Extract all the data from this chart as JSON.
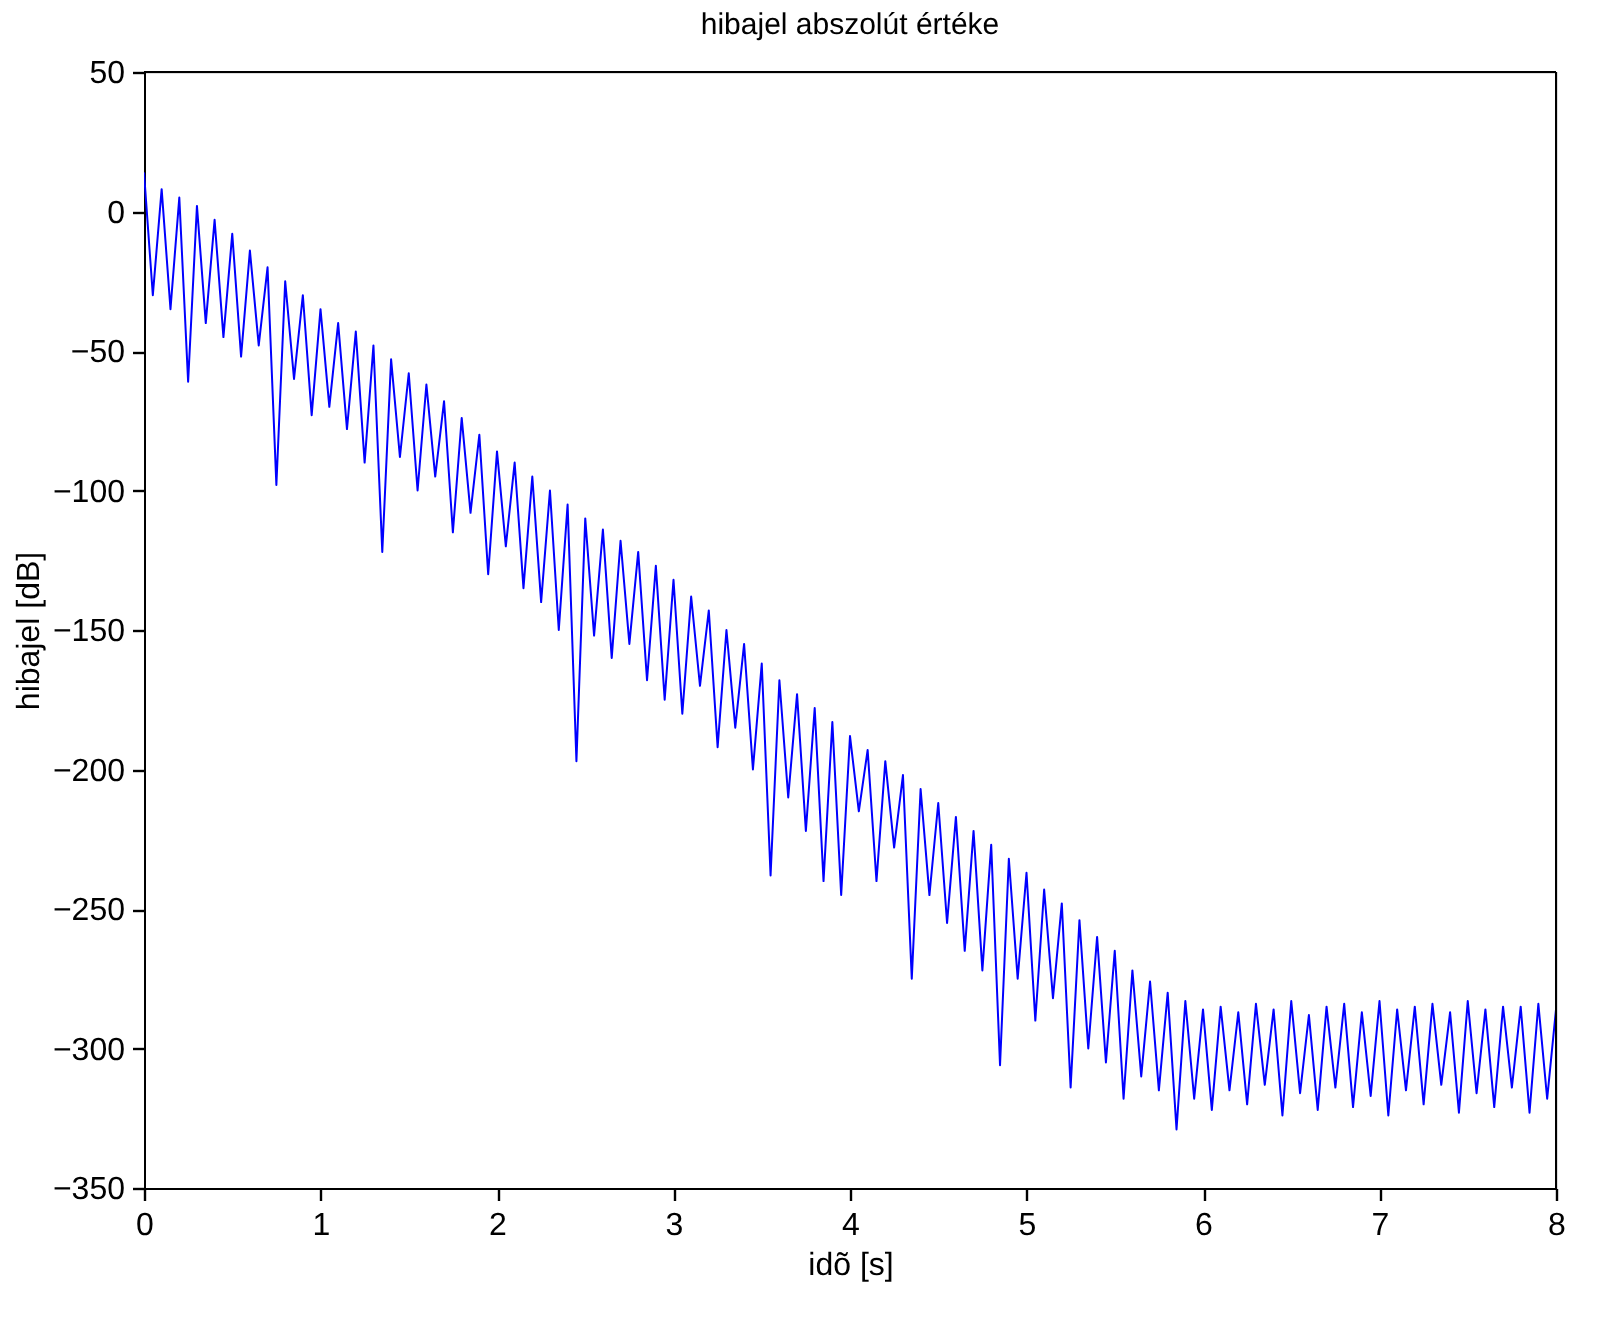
{
  "chart_data": {
    "type": "line",
    "title": "hibajel abszolút értéke",
    "xlabel": "idõ [s]",
    "ylabel": "hibajel [dB]",
    "xlim": [
      0,
      8
    ],
    "xticks": [
      0,
      1,
      2,
      3,
      4,
      5,
      6,
      7,
      8
    ],
    "ylim": [
      -350,
      50
    ],
    "yticks": [
      -350,
      -300,
      -250,
      -200,
      -150,
      -100,
      -50,
      0,
      50
    ],
    "grid": false,
    "legend": false,
    "marker": "none",
    "line_style": "solid",
    "series": [
      {
        "color": "#0000ff",
        "x": [
          0.0,
          0.05,
          0.1,
          0.15,
          0.2,
          0.25,
          0.3,
          0.35,
          0.4,
          0.45,
          0.5,
          0.55,
          0.6,
          0.65,
          0.7,
          0.75,
          0.8,
          0.85,
          0.9,
          0.95,
          1.0,
          1.05,
          1.1,
          1.15,
          1.2,
          1.25,
          1.3,
          1.35,
          1.4,
          1.45,
          1.5,
          1.55,
          1.6,
          1.65,
          1.7,
          1.75,
          1.8,
          1.85,
          1.9,
          1.95,
          2.0,
          2.05,
          2.1,
          2.15,
          2.2,
          2.25,
          2.3,
          2.35,
          2.4,
          2.45,
          2.5,
          2.55,
          2.6,
          2.65,
          2.7,
          2.75,
          2.8,
          2.85,
          2.9,
          2.95,
          3.0,
          3.05,
          3.1,
          3.15,
          3.2,
          3.25,
          3.3,
          3.35,
          3.4,
          3.45,
          3.5,
          3.55,
          3.6,
          3.65,
          3.7,
          3.75,
          3.8,
          3.85,
          3.9,
          3.95,
          4.0,
          4.05,
          4.1,
          4.15,
          4.2,
          4.25,
          4.3,
          4.35,
          4.4,
          4.45,
          4.5,
          4.55,
          4.6,
          4.65,
          4.7,
          4.75,
          4.8,
          4.85,
          4.9,
          4.95,
          5.0,
          5.05,
          5.1,
          5.15,
          5.2,
          5.25,
          5.3,
          5.35,
          5.4,
          5.45,
          5.5,
          5.55,
          5.6,
          5.65,
          5.7,
          5.75,
          5.8,
          5.85,
          5.9,
          5.95,
          6.0,
          6.05,
          6.1,
          6.15,
          6.2,
          6.25,
          6.3,
          6.35,
          6.4,
          6.45,
          6.5,
          6.55,
          6.6,
          6.65,
          6.7,
          6.75,
          6.8,
          6.85,
          6.9,
          6.95,
          7.0,
          7.05,
          7.1,
          7.15,
          7.2,
          7.25,
          7.3,
          7.35,
          7.4,
          7.45,
          7.5,
          7.55,
          7.6,
          7.65,
          7.7,
          7.75,
          7.8,
          7.85,
          7.9,
          7.95,
          8.0
        ],
        "values": [
          14,
          -30,
          8,
          -35,
          5,
          -61,
          2,
          -40,
          -3,
          -45,
          -8,
          -52,
          -14,
          -48,
          -20,
          -98,
          -25,
          -60,
          -30,
          -73,
          -35,
          -70,
          -40,
          -78,
          -43,
          -90,
          -48,
          -122,
          -53,
          -88,
          -58,
          -100,
          -62,
          -95,
          -68,
          -115,
          -74,
          -108,
          -80,
          -130,
          -86,
          -120,
          -90,
          -135,
          -95,
          -140,
          -100,
          -150,
          -105,
          -197,
          -110,
          -152,
          -114,
          -160,
          -118,
          -155,
          -122,
          -168,
          -127,
          -175,
          -132,
          -180,
          -138,
          -170,
          -143,
          -192,
          -150,
          -185,
          -155,
          -200,
          -162,
          -238,
          -168,
          -210,
          -173,
          -222,
          -178,
          -240,
          -183,
          -245,
          -188,
          -215,
          -193,
          -240,
          -197,
          -228,
          -202,
          -275,
          -207,
          -245,
          -212,
          -255,
          -217,
          -265,
          -222,
          -272,
          -227,
          -306,
          -232,
          -275,
          -237,
          -290,
          -243,
          -282,
          -248,
          -314,
          -254,
          -300,
          -260,
          -305,
          -265,
          -318,
          -272,
          -310,
          -276,
          -315,
          -280,
          -329,
          -283,
          -318,
          -286,
          -322,
          -285,
          -315,
          -287,
          -320,
          -284,
          -313,
          -286,
          -324,
          -283,
          -316,
          -288,
          -322,
          -285,
          -314,
          -284,
          -321,
          -287,
          -317,
          -283,
          -324,
          -286,
          -315,
          -285,
          -320,
          -284,
          -313,
          -287,
          -323,
          -283,
          -316,
          -286,
          -321,
          -285,
          -314,
          -285,
          -323,
          -284,
          -318,
          -286
        ]
      }
    ]
  }
}
